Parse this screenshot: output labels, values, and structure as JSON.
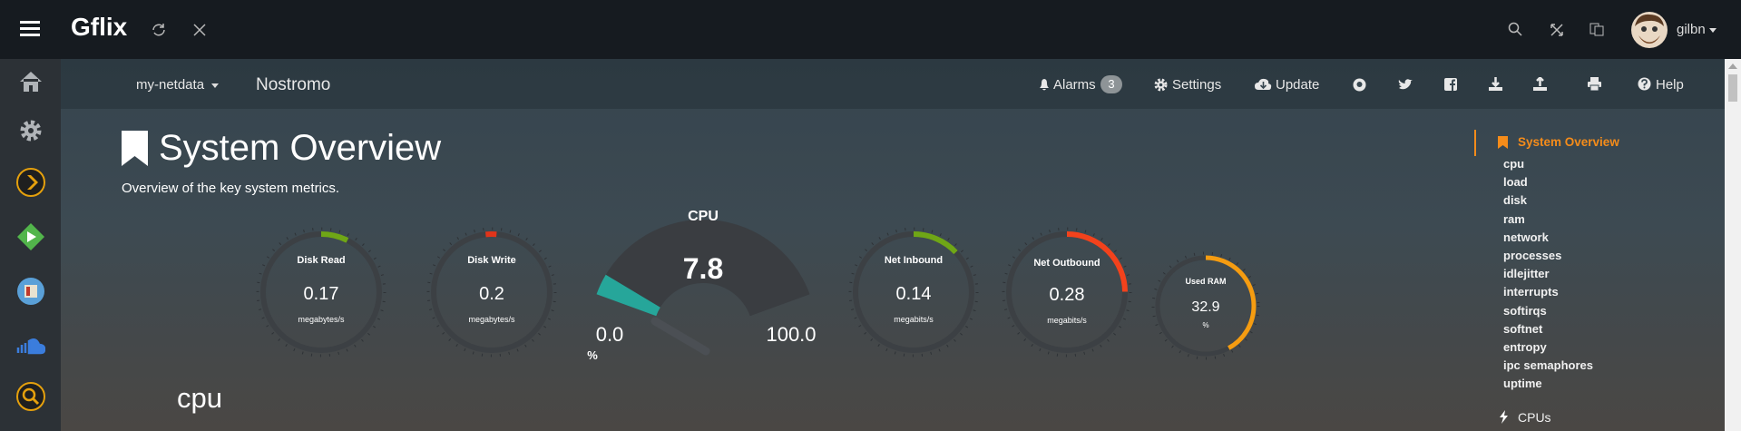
{
  "topbar": {
    "brand": "Gflix",
    "user": "gilbn"
  },
  "nav": {
    "menu": "my-netdata",
    "host": "Nostromo",
    "alarms": "Alarms",
    "alarms_count": 3,
    "settings": "Settings",
    "update": "Update",
    "help": "Help"
  },
  "page": {
    "title": "System Overview",
    "subtitle": "Overview of the key system metrics.",
    "section": "cpu"
  },
  "gauges": [
    {
      "title": "Disk Read",
      "value": 0.17,
      "units": "megabytes/s"
    },
    {
      "title": "Disk Write",
      "value": 0.2,
      "units": "megabytes/s"
    },
    {
      "title": "Net Inbound",
      "value": 0.14,
      "units": "megabits/s"
    },
    {
      "title": "Net Outbound",
      "value": 0.28,
      "units": "megabits/s"
    },
    {
      "title": "Used RAM",
      "value": 32.9,
      "units": "%"
    }
  ],
  "cpu_gauge": {
    "title": "CPU",
    "value": 7.8,
    "min": "0.0",
    "max": "100.0",
    "units": "%"
  },
  "toc": {
    "active": "System Overview",
    "items": [
      "cpu",
      "load",
      "disk",
      "ram",
      "network",
      "processes",
      "idlejitter",
      "interrupts",
      "softirqs",
      "softnet",
      "entropy",
      "ipc semaphores",
      "uptime"
    ],
    "next": "CPUs"
  }
}
